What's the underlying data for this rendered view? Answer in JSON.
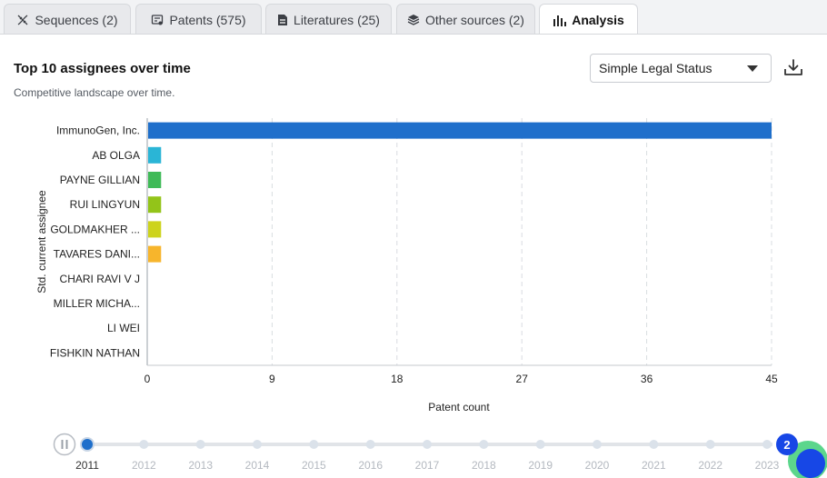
{
  "tabs": [
    {
      "label": "Sequences (2)",
      "icon": "dna-icon"
    },
    {
      "label": "Patents (575)",
      "icon": "patent-icon"
    },
    {
      "label": "Literatures (25)",
      "icon": "document-icon"
    },
    {
      "label": "Other sources (2)",
      "icon": "cube-icon"
    },
    {
      "label": "Analysis",
      "icon": "bar-chart-icon",
      "active": true
    }
  ],
  "header": {
    "title": "Top 10 assignees over time",
    "subtitle": "Competitive landscape over time.",
    "select_value": "Simple Legal Status"
  },
  "chart_data": {
    "type": "bar",
    "orientation": "horizontal",
    "title": "Top 10 assignees over time",
    "xlabel": "Patent count",
    "ylabel": "Std. current assignee",
    "xlim": [
      0,
      45
    ],
    "xticks": [
      0,
      9,
      18,
      27,
      36,
      45
    ],
    "grid": true,
    "categories": [
      "ImmunoGen, Inc.",
      "AB OLGA",
      "PAYNE GILLIAN",
      "RUI LINGYUN",
      "GOLDMAKHER ...",
      "TAVARES DANI...",
      "CHARI RAVI V J",
      "MILLER MICHA...",
      "LI WEI",
      "FISHKIN NATHAN"
    ],
    "values": [
      45,
      1,
      1,
      1,
      1,
      1,
      0,
      0,
      0,
      0
    ],
    "colors": [
      "#1f6fcb",
      "#2ab5d6",
      "#3fba57",
      "#93c419",
      "#cdd31c",
      "#f7b52c",
      "#cccccc",
      "#cccccc",
      "#cccccc",
      "#cccccc"
    ]
  },
  "timeline": {
    "years": [
      "2011",
      "2012",
      "2013",
      "2014",
      "2015",
      "2016",
      "2017",
      "2018",
      "2019",
      "2020",
      "2021",
      "2022",
      "2023"
    ],
    "current_index": 0,
    "badge": "2",
    "accent": "#1f6fcb",
    "badge_color": "#1747e6"
  }
}
